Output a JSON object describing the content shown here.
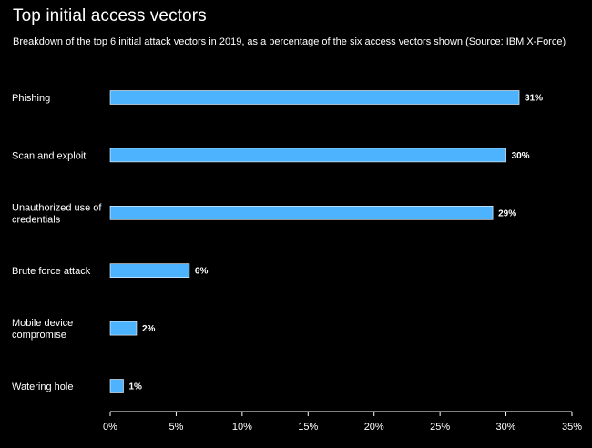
{
  "chart_data": {
    "type": "bar",
    "orientation": "horizontal",
    "title": "Top initial access vectors",
    "subtitle": "Breakdown of the top 6 initial attack vectors in 2019, as a percentage of the six access vectors shown (Source: IBM X-Force)",
    "categories": [
      [
        "Phishing"
      ],
      [
        "Scan and exploit"
      ],
      [
        "Unauthorized use of",
        "credentials"
      ],
      [
        "Brute force attack"
      ],
      [
        "Mobile device",
        "compromise"
      ],
      [
        "Watering hole"
      ]
    ],
    "values": [
      31,
      30,
      29,
      6,
      2,
      1
    ],
    "value_labels": [
      "31%",
      "30%",
      "29%",
      "6%",
      "2%",
      "1%"
    ],
    "xlim": [
      0,
      35
    ],
    "xticks": [
      0,
      5,
      10,
      15,
      20,
      25,
      30,
      35
    ],
    "xtick_labels": [
      "0%",
      "5%",
      "10%",
      "15%",
      "20%",
      "25%",
      "30%",
      "35%"
    ],
    "xlabel": "",
    "ylabel": "",
    "grid": false,
    "bar_color": "#4db3ff",
    "axis_color": "#ffffff"
  }
}
